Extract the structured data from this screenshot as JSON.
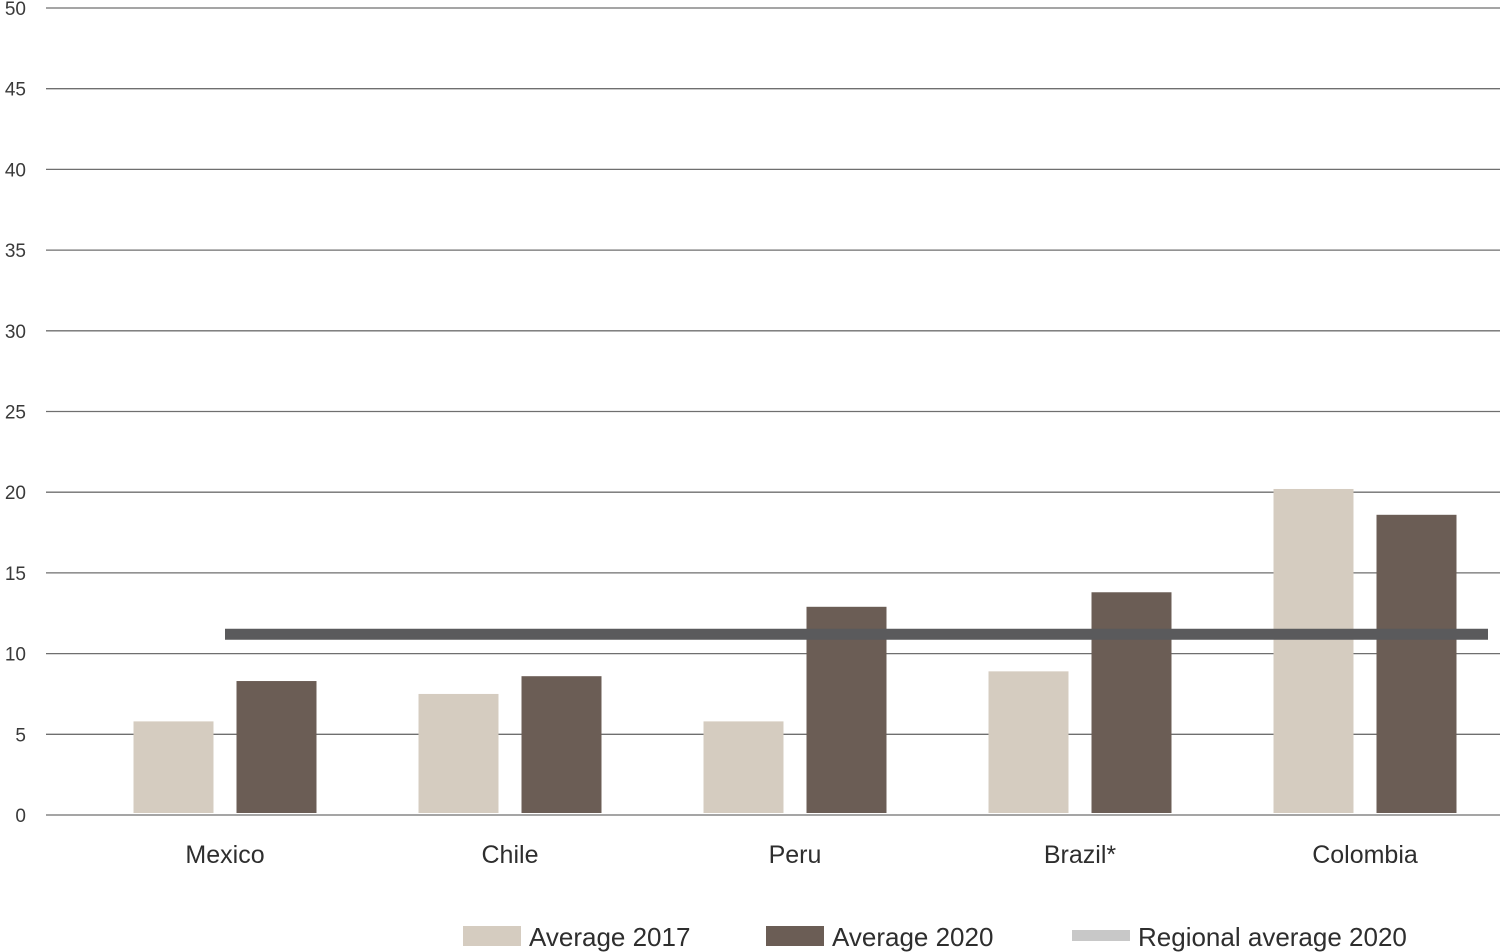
{
  "chart_data": {
    "type": "bar",
    "categories": [
      "Mexico",
      "Chile",
      "Peru",
      "Brazil*",
      "Colombia"
    ],
    "series": [
      {
        "name": "Average 2017",
        "values": [
          5.8,
          7.5,
          5.8,
          8.9,
          20.2
        ],
        "color": "#d5ccc0"
      },
      {
        "name": "Average 2020",
        "values": [
          8.3,
          8.6,
          12.9,
          13.8,
          18.6
        ],
        "color": "#6b5d55"
      }
    ],
    "reference_line": {
      "name": "Regional average 2020",
      "value": 11.2,
      "color": "#5a5a5c",
      "legend_color": "#c8c8c8"
    },
    "ylim": [
      0,
      50
    ],
    "yticks": [
      "0",
      "5",
      "10",
      "15",
      "20",
      "25",
      "30",
      "35",
      "40",
      "45",
      "50"
    ],
    "grid": true,
    "legend_position": "bottom"
  }
}
